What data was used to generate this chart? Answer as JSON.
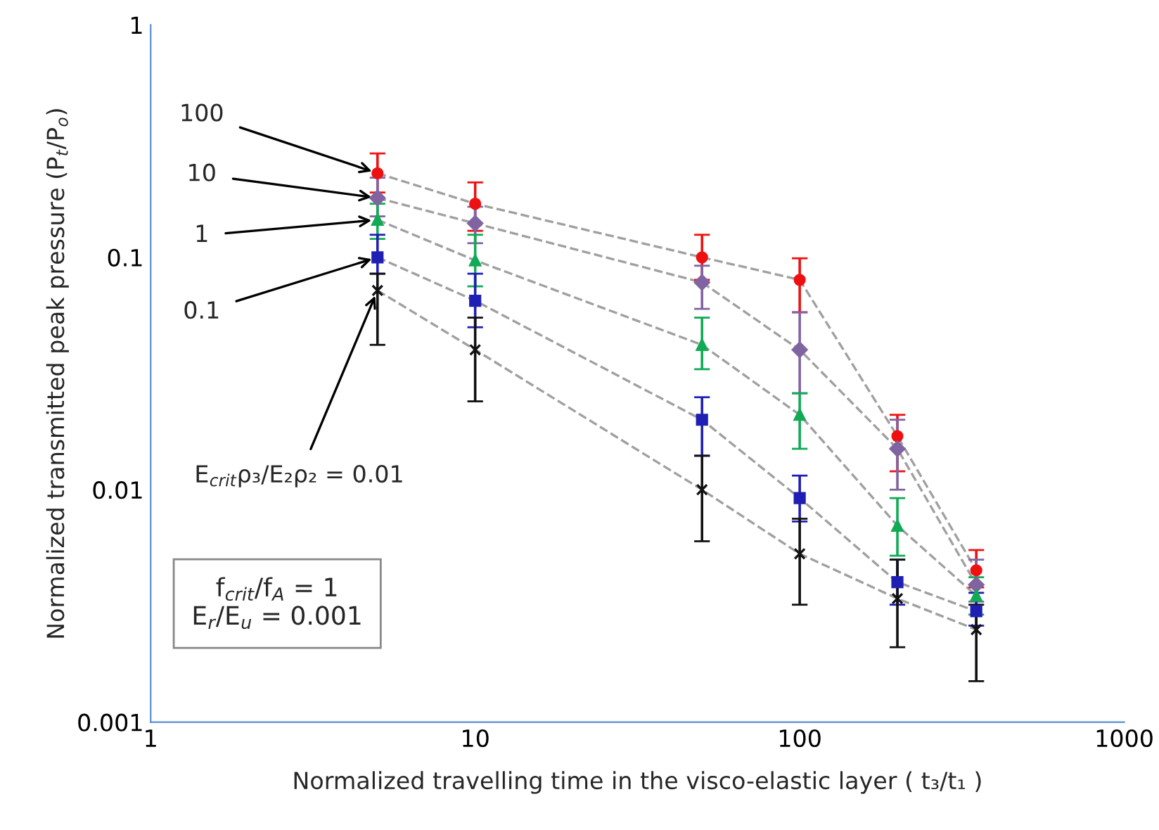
{
  "chart_data": {
    "type": "line",
    "xlabel": "Normalized travelling time in the visco-elastic layer ( t₃/t₁ )",
    "ylabel": "Normalized transmitted peak pressure (P$_{t}$/P$_{o}$)",
    "log": "xy",
    "xlim": [
      1,
      1000
    ],
    "xticks": [
      1,
      10,
      100,
      1000
    ],
    "ylim": [
      0.001,
      1
    ],
    "yticks": [
      0.001,
      0.01,
      0.1,
      1
    ],
    "grid": false,
    "line_style": "dashed",
    "series": [
      {
        "name": "100",
        "color": "#ee1111",
        "marker": "circle",
        "x": [
          5,
          10,
          50,
          100,
          200,
          350
        ],
        "values": [
          0.23,
          0.17,
          0.1,
          0.08,
          0.017,
          0.0045
        ],
        "errors": [
          [
            0.19,
            0.28
          ],
          [
            0.13,
            0.21
          ],
          [
            0.08,
            0.125
          ],
          [
            0.058,
            0.099
          ],
          [
            0.012,
            0.021
          ],
          [
            0.0038,
            0.0055
          ]
        ]
      },
      {
        "name": "10",
        "color": "#8064a2",
        "marker": "diamond",
        "x": [
          5,
          10,
          50,
          100,
          200,
          350
        ],
        "values": [
          0.18,
          0.14,
          0.078,
          0.04,
          0.015,
          0.0039
        ],
        "errors": [
          [
            0.15,
            0.22
          ],
          [
            0.115,
            0.165
          ],
          [
            0.06,
            0.092
          ],
          [
            0.026,
            0.058
          ],
          [
            0.01,
            0.02
          ],
          [
            0.0033,
            0.005
          ]
        ]
      },
      {
        "name": "1",
        "color": "#11aa55",
        "marker": "triangle",
        "x": [
          5,
          10,
          50,
          100,
          200,
          350
        ],
        "values": [
          0.145,
          0.097,
          0.042,
          0.021,
          0.007,
          0.0035
        ],
        "errors": [
          [
            0.12,
            0.17
          ],
          [
            0.075,
            0.125
          ],
          [
            0.033,
            0.055
          ],
          [
            0.015,
            0.026
          ],
          [
            0.0052,
            0.0092
          ],
          [
            0.0029,
            0.0042
          ]
        ]
      },
      {
        "name": "0.1",
        "color": "#1f1fb4",
        "marker": "square",
        "x": [
          5,
          10,
          50,
          100,
          200,
          350
        ],
        "values": [
          0.1,
          0.065,
          0.02,
          0.0092,
          0.004,
          0.003
        ],
        "errors": [
          [
            0.085,
            0.125
          ],
          [
            0.05,
            0.085
          ],
          [
            0.014,
            0.025
          ],
          [
            0.0073,
            0.0115
          ],
          [
            0.0032,
            0.005
          ],
          [
            0.0026,
            0.0036
          ]
        ]
      },
      {
        "name": "E$_{crit}$ρ₃/E₂ρ₂ = 0.01",
        "color": "#111111",
        "marker": "cross",
        "x": [
          5,
          10,
          50,
          100,
          200,
          350
        ],
        "values": [
          0.072,
          0.04,
          0.01,
          0.0053,
          0.0034,
          0.0025
        ],
        "errors": [
          [
            0.042,
            0.085
          ],
          [
            0.024,
            0.055
          ],
          [
            0.006,
            0.014
          ],
          [
            0.0032,
            0.0075
          ],
          [
            0.0021,
            0.005
          ],
          [
            0.0015,
            0.0032
          ]
        ]
      }
    ],
    "annotations": [
      "f$_{crit}$/f$_{A}$ = 1\nE$_{r}$/E$_{u}$ = 0.001"
    ]
  }
}
